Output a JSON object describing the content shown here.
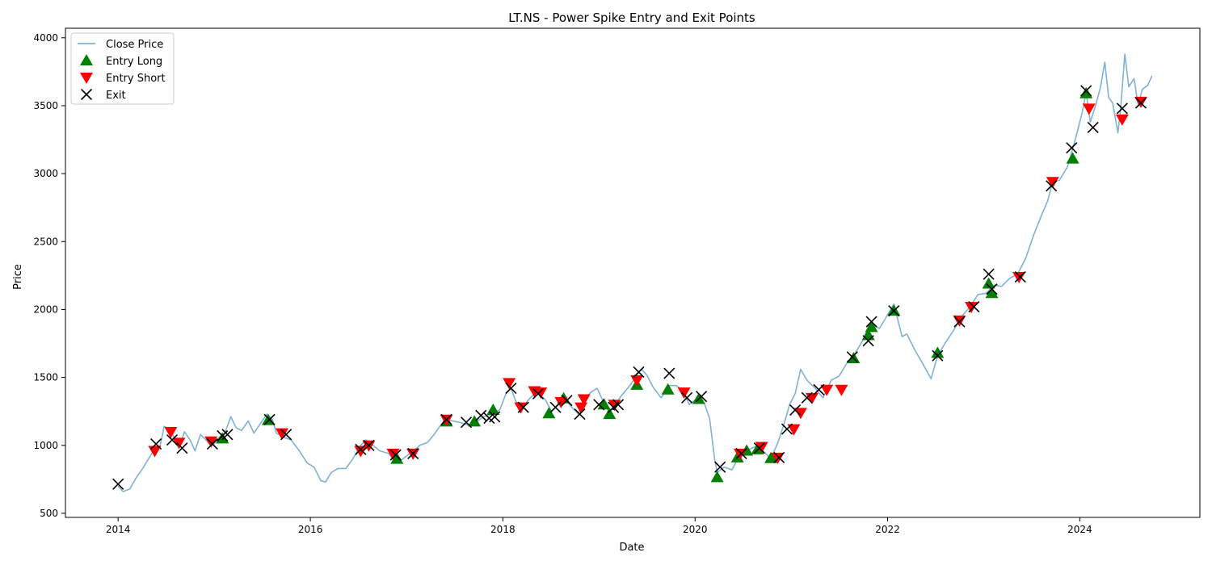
{
  "chart_data": {
    "type": "line",
    "title": "LT.NS - Power Spike Entry and Exit Points",
    "xlabel": "Date",
    "ylabel": "Price",
    "xlim": [
      "2013-06-15",
      "2025-04-01"
    ],
    "ylim": [
      470,
      4070
    ],
    "x_ticks": [
      "2014",
      "2016",
      "2018",
      "2020",
      "2022",
      "2024"
    ],
    "y_ticks": [
      500,
      1000,
      1500,
      2000,
      2500,
      3000,
      3500,
      4000
    ],
    "grid": false,
    "legend_position": "upper-left",
    "colors": {
      "close": "#7fb2d5",
      "entry_long": "#008000",
      "entry_short": "#ff0000",
      "exit": "#000000"
    },
    "series": [
      {
        "name": "Close Price",
        "type": "line",
        "points": [
          [
            "2014-01-01",
            700
          ],
          [
            "2014-01-20",
            660
          ],
          [
            "2014-02-15",
            680
          ],
          [
            "2014-03-10",
            760
          ],
          [
            "2014-04-01",
            820
          ],
          [
            "2014-04-20",
            880
          ],
          [
            "2014-05-15",
            960
          ],
          [
            "2014-06-10",
            1000
          ],
          [
            "2014-06-25",
            1140
          ],
          [
            "2014-07-15",
            1120
          ],
          [
            "2014-08-10",
            1030
          ],
          [
            "2014-08-20",
            980
          ],
          [
            "2014-09-10",
            1100
          ],
          [
            "2014-10-01",
            1040
          ],
          [
            "2014-10-20",
            960
          ],
          [
            "2014-11-10",
            1080
          ],
          [
            "2014-12-10",
            1020
          ],
          [
            "2015-01-01",
            1010
          ],
          [
            "2015-01-20",
            1060
          ],
          [
            "2015-02-10",
            1090
          ],
          [
            "2015-03-05",
            1210
          ],
          [
            "2015-03-25",
            1130
          ],
          [
            "2015-04-15",
            1110
          ],
          [
            "2015-05-10",
            1180
          ],
          [
            "2015-06-01",
            1090
          ],
          [
            "2015-06-25",
            1160
          ],
          [
            "2015-07-20",
            1230
          ],
          [
            "2015-08-10",
            1190
          ],
          [
            "2015-08-25",
            1090
          ],
          [
            "2015-09-20",
            1060
          ],
          [
            "2015-10-20",
            1040
          ],
          [
            "2015-11-20",
            960
          ],
          [
            "2015-12-20",
            870
          ],
          [
            "2016-01-15",
            840
          ],
          [
            "2016-02-10",
            740
          ],
          [
            "2016-02-28",
            730
          ],
          [
            "2016-03-20",
            800
          ],
          [
            "2016-04-15",
            830
          ],
          [
            "2016-05-15",
            830
          ],
          [
            "2016-06-10",
            900
          ],
          [
            "2016-07-10",
            1000
          ],
          [
            "2016-07-30",
            1040
          ],
          [
            "2016-08-20",
            1010
          ],
          [
            "2016-09-20",
            960
          ],
          [
            "2016-10-25",
            940
          ],
          [
            "2016-11-20",
            870
          ],
          [
            "2016-12-10",
            890
          ],
          [
            "2017-01-20",
            950
          ],
          [
            "2017-02-20",
            1000
          ],
          [
            "2017-03-20",
            1020
          ],
          [
            "2017-04-15",
            1080
          ],
          [
            "2017-05-10",
            1150
          ],
          [
            "2017-06-01",
            1190
          ],
          [
            "2017-06-25",
            1180
          ],
          [
            "2017-07-20",
            1170
          ],
          [
            "2017-08-20",
            1150
          ],
          [
            "2017-09-20",
            1170
          ],
          [
            "2017-10-20",
            1210
          ],
          [
            "2017-11-20",
            1230
          ],
          [
            "2017-12-20",
            1260
          ],
          [
            "2018-01-15",
            1390
          ],
          [
            "2018-02-01",
            1420
          ],
          [
            "2018-02-20",
            1320
          ],
          [
            "2018-03-20",
            1290
          ],
          [
            "2018-04-15",
            1350
          ],
          [
            "2018-05-10",
            1390
          ],
          [
            "2018-06-10",
            1340
          ],
          [
            "2018-07-05",
            1250
          ],
          [
            "2018-08-01",
            1310
          ],
          [
            "2018-08-25",
            1340
          ],
          [
            "2018-09-20",
            1280
          ],
          [
            "2018-10-15",
            1230
          ],
          [
            "2018-11-05",
            1340
          ],
          [
            "2018-12-01",
            1390
          ],
          [
            "2018-12-25",
            1420
          ],
          [
            "2019-01-20",
            1310
          ],
          [
            "2019-02-10",
            1240
          ],
          [
            "2019-03-01",
            1290
          ],
          [
            "2019-03-25",
            1360
          ],
          [
            "2019-04-20",
            1420
          ],
          [
            "2019-05-20",
            1500
          ],
          [
            "2019-06-10",
            1560
          ],
          [
            "2019-07-01",
            1520
          ],
          [
            "2019-07-25",
            1430
          ],
          [
            "2019-08-25",
            1350
          ],
          [
            "2019-09-25",
            1440
          ],
          [
            "2019-10-20",
            1440
          ],
          [
            "2019-11-15",
            1410
          ],
          [
            "2019-12-10",
            1300
          ],
          [
            "2020-01-10",
            1350
          ],
          [
            "2020-02-05",
            1310
          ],
          [
            "2020-02-25",
            1200
          ],
          [
            "2020-03-15",
            900
          ],
          [
            "2020-03-25",
            800
          ],
          [
            "2020-04-20",
            840
          ],
          [
            "2020-05-20",
            820
          ],
          [
            "2020-06-15",
            920
          ],
          [
            "2020-07-15",
            960
          ],
          [
            "2020-08-15",
            990
          ],
          [
            "2020-09-15",
            960
          ],
          [
            "2020-10-15",
            900
          ],
          [
            "2020-11-10",
            1020
          ],
          [
            "2020-12-01",
            1140
          ],
          [
            "2020-12-25",
            1300
          ],
          [
            "2021-01-15",
            1380
          ],
          [
            "2021-02-05",
            1560
          ],
          [
            "2021-03-01",
            1480
          ],
          [
            "2021-04-01",
            1420
          ],
          [
            "2021-05-01",
            1350
          ],
          [
            "2021-06-01",
            1480
          ],
          [
            "2021-07-01",
            1510
          ],
          [
            "2021-08-01",
            1610
          ],
          [
            "2021-09-01",
            1680
          ],
          [
            "2021-10-01",
            1780
          ],
          [
            "2021-10-25",
            1900
          ],
          [
            "2021-12-01",
            1860
          ],
          [
            "2022-01-10",
            1990
          ],
          [
            "2022-01-25",
            2040
          ],
          [
            "2022-02-25",
            1800
          ],
          [
            "2022-03-15",
            1820
          ],
          [
            "2022-04-15",
            1700
          ],
          [
            "2022-05-15",
            1600
          ],
          [
            "2022-06-15",
            1490
          ],
          [
            "2022-07-10",
            1660
          ],
          [
            "2022-08-10",
            1760
          ],
          [
            "2022-09-10",
            1850
          ],
          [
            "2022-10-10",
            1950
          ],
          [
            "2022-11-10",
            2020
          ],
          [
            "2022-12-10",
            2110
          ],
          [
            "2023-01-10",
            2120
          ],
          [
            "2023-02-10",
            2180
          ],
          [
            "2023-03-10",
            2170
          ],
          [
            "2023-04-10",
            2230
          ],
          [
            "2023-05-10",
            2260
          ],
          [
            "2023-06-10",
            2380
          ],
          [
            "2023-07-10",
            2550
          ],
          [
            "2023-08-10",
            2700
          ],
          [
            "2023-09-01",
            2800
          ],
          [
            "2023-09-20",
            2940
          ],
          [
            "2023-10-15",
            2950
          ],
          [
            "2023-11-15",
            3050
          ],
          [
            "2023-12-15",
            3250
          ],
          [
            "2024-01-10",
            3450
          ],
          [
            "2024-01-25",
            3600
          ],
          [
            "2024-02-10",
            3380
          ],
          [
            "2024-03-01",
            3500
          ],
          [
            "2024-03-20",
            3640
          ],
          [
            "2024-04-05",
            3820
          ],
          [
            "2024-04-20",
            3560
          ],
          [
            "2024-05-05",
            3520
          ],
          [
            "2024-05-25",
            3300
          ],
          [
            "2024-06-05",
            3500
          ],
          [
            "2024-06-20",
            3880
          ],
          [
            "2024-07-05",
            3640
          ],
          [
            "2024-07-25",
            3700
          ],
          [
            "2024-08-10",
            3500
          ],
          [
            "2024-08-25",
            3620
          ],
          [
            "2024-09-15",
            3650
          ],
          [
            "2024-10-01",
            3720
          ]
        ]
      },
      {
        "name": "Entry Long",
        "type": "scatter",
        "marker": "triangle-up",
        "points": [
          [
            "2015-02-01",
            1050
          ],
          [
            "2015-07-25",
            1185
          ],
          [
            "2016-11-25",
            900
          ],
          [
            "2017-06-01",
            1175
          ],
          [
            "2017-09-15",
            1175
          ],
          [
            "2017-11-25",
            1260
          ],
          [
            "2018-06-25",
            1235
          ],
          [
            "2018-08-20",
            1345
          ],
          [
            "2019-01-20",
            1300
          ],
          [
            "2019-02-10",
            1230
          ],
          [
            "2019-05-25",
            1445
          ],
          [
            "2019-09-20",
            1410
          ],
          [
            "2020-01-15",
            1340
          ],
          [
            "2020-03-25",
            765
          ],
          [
            "2020-06-10",
            910
          ],
          [
            "2020-07-15",
            960
          ],
          [
            "2020-08-25",
            970
          ],
          [
            "2020-10-15",
            905
          ],
          [
            "2021-08-25",
            1640
          ],
          [
            "2021-10-20",
            1810
          ],
          [
            "2021-11-01",
            1870
          ],
          [
            "2022-01-25",
            1990
          ],
          [
            "2022-07-10",
            1680
          ],
          [
            "2023-01-20",
            2190
          ],
          [
            "2023-02-01",
            2120
          ],
          [
            "2023-12-05",
            3110
          ],
          [
            "2024-01-25",
            3590
          ]
        ]
      },
      {
        "name": "Entry Short",
        "type": "scatter",
        "marker": "triangle-down",
        "points": [
          [
            "2014-05-20",
            960
          ],
          [
            "2014-07-20",
            1100
          ],
          [
            "2014-08-20",
            1020
          ],
          [
            "2014-12-20",
            1030
          ],
          [
            "2015-09-15",
            1090
          ],
          [
            "2016-07-10",
            960
          ],
          [
            "2016-08-10",
            1000
          ],
          [
            "2016-11-10",
            940
          ],
          [
            "2017-01-25",
            940
          ],
          [
            "2017-06-01",
            1190
          ],
          [
            "2018-01-25",
            1460
          ],
          [
            "2018-03-10",
            1280
          ],
          [
            "2018-05-01",
            1400
          ],
          [
            "2018-05-25",
            1390
          ],
          [
            "2018-08-10",
            1320
          ],
          [
            "2018-10-25",
            1280
          ],
          [
            "2018-11-05",
            1340
          ],
          [
            "2019-03-01",
            1300
          ],
          [
            "2019-05-25",
            1480
          ],
          [
            "2019-11-20",
            1390
          ],
          [
            "2020-06-20",
            940
          ],
          [
            "2020-09-10",
            990
          ],
          [
            "2020-11-10",
            910
          ],
          [
            "2021-01-10",
            1120
          ],
          [
            "2021-02-05",
            1240
          ],
          [
            "2021-03-20",
            1350
          ],
          [
            "2021-05-15",
            1410
          ],
          [
            "2021-07-10",
            1410
          ],
          [
            "2022-10-01",
            1920
          ],
          [
            "2022-11-15",
            2020
          ],
          [
            "2023-05-15",
            2240
          ],
          [
            "2023-09-20",
            2940
          ],
          [
            "2024-02-05",
            3480
          ],
          [
            "2024-06-10",
            3400
          ],
          [
            "2024-08-20",
            3530
          ]
        ]
      },
      {
        "name": "Exit",
        "type": "scatter",
        "marker": "x",
        "points": [
          [
            "2014-01-01",
            715
          ],
          [
            "2014-05-25",
            1010
          ],
          [
            "2014-07-25",
            1040
          ],
          [
            "2014-09-01",
            980
          ],
          [
            "2014-12-25",
            1010
          ],
          [
            "2015-02-01",
            1070
          ],
          [
            "2015-02-20",
            1080
          ],
          [
            "2015-07-30",
            1190
          ],
          [
            "2015-10-01",
            1080
          ],
          [
            "2016-07-10",
            970
          ],
          [
            "2016-08-10",
            1000
          ],
          [
            "2016-11-20",
            930
          ],
          [
            "2017-01-25",
            940
          ],
          [
            "2017-06-01",
            1190
          ],
          [
            "2017-08-15",
            1170
          ],
          [
            "2017-10-10",
            1220
          ],
          [
            "2017-11-10",
            1200
          ],
          [
            "2017-12-01",
            1210
          ],
          [
            "2018-02-01",
            1420
          ],
          [
            "2018-03-20",
            1280
          ],
          [
            "2018-05-15",
            1380
          ],
          [
            "2018-07-20",
            1280
          ],
          [
            "2018-09-01",
            1330
          ],
          [
            "2018-10-20",
            1230
          ],
          [
            "2019-01-01",
            1300
          ],
          [
            "2019-02-25",
            1280
          ],
          [
            "2019-03-15",
            1300
          ],
          [
            "2019-06-01",
            1540
          ],
          [
            "2019-09-25",
            1530
          ],
          [
            "2019-12-01",
            1350
          ],
          [
            "2020-01-25",
            1360
          ],
          [
            "2020-04-05",
            840
          ],
          [
            "2020-06-25",
            940
          ],
          [
            "2020-09-01",
            980
          ],
          [
            "2020-11-15",
            910
          ],
          [
            "2020-12-15",
            1120
          ],
          [
            "2021-01-15",
            1260
          ],
          [
            "2021-03-01",
            1350
          ],
          [
            "2021-04-15",
            1410
          ],
          [
            "2021-08-20",
            1650
          ],
          [
            "2021-10-20",
            1770
          ],
          [
            "2021-11-01",
            1910
          ],
          [
            "2022-01-25",
            1990
          ],
          [
            "2022-07-10",
            1660
          ],
          [
            "2022-10-01",
            1910
          ],
          [
            "2022-11-25",
            2020
          ],
          [
            "2023-01-20",
            2260
          ],
          [
            "2023-02-01",
            2150
          ],
          [
            "2023-05-20",
            2240
          ],
          [
            "2023-09-15",
            2910
          ],
          [
            "2023-12-01",
            3190
          ],
          [
            "2024-01-25",
            3610
          ],
          [
            "2024-02-20",
            3340
          ],
          [
            "2024-06-10",
            3480
          ],
          [
            "2024-08-20",
            3520
          ]
        ]
      }
    ]
  }
}
